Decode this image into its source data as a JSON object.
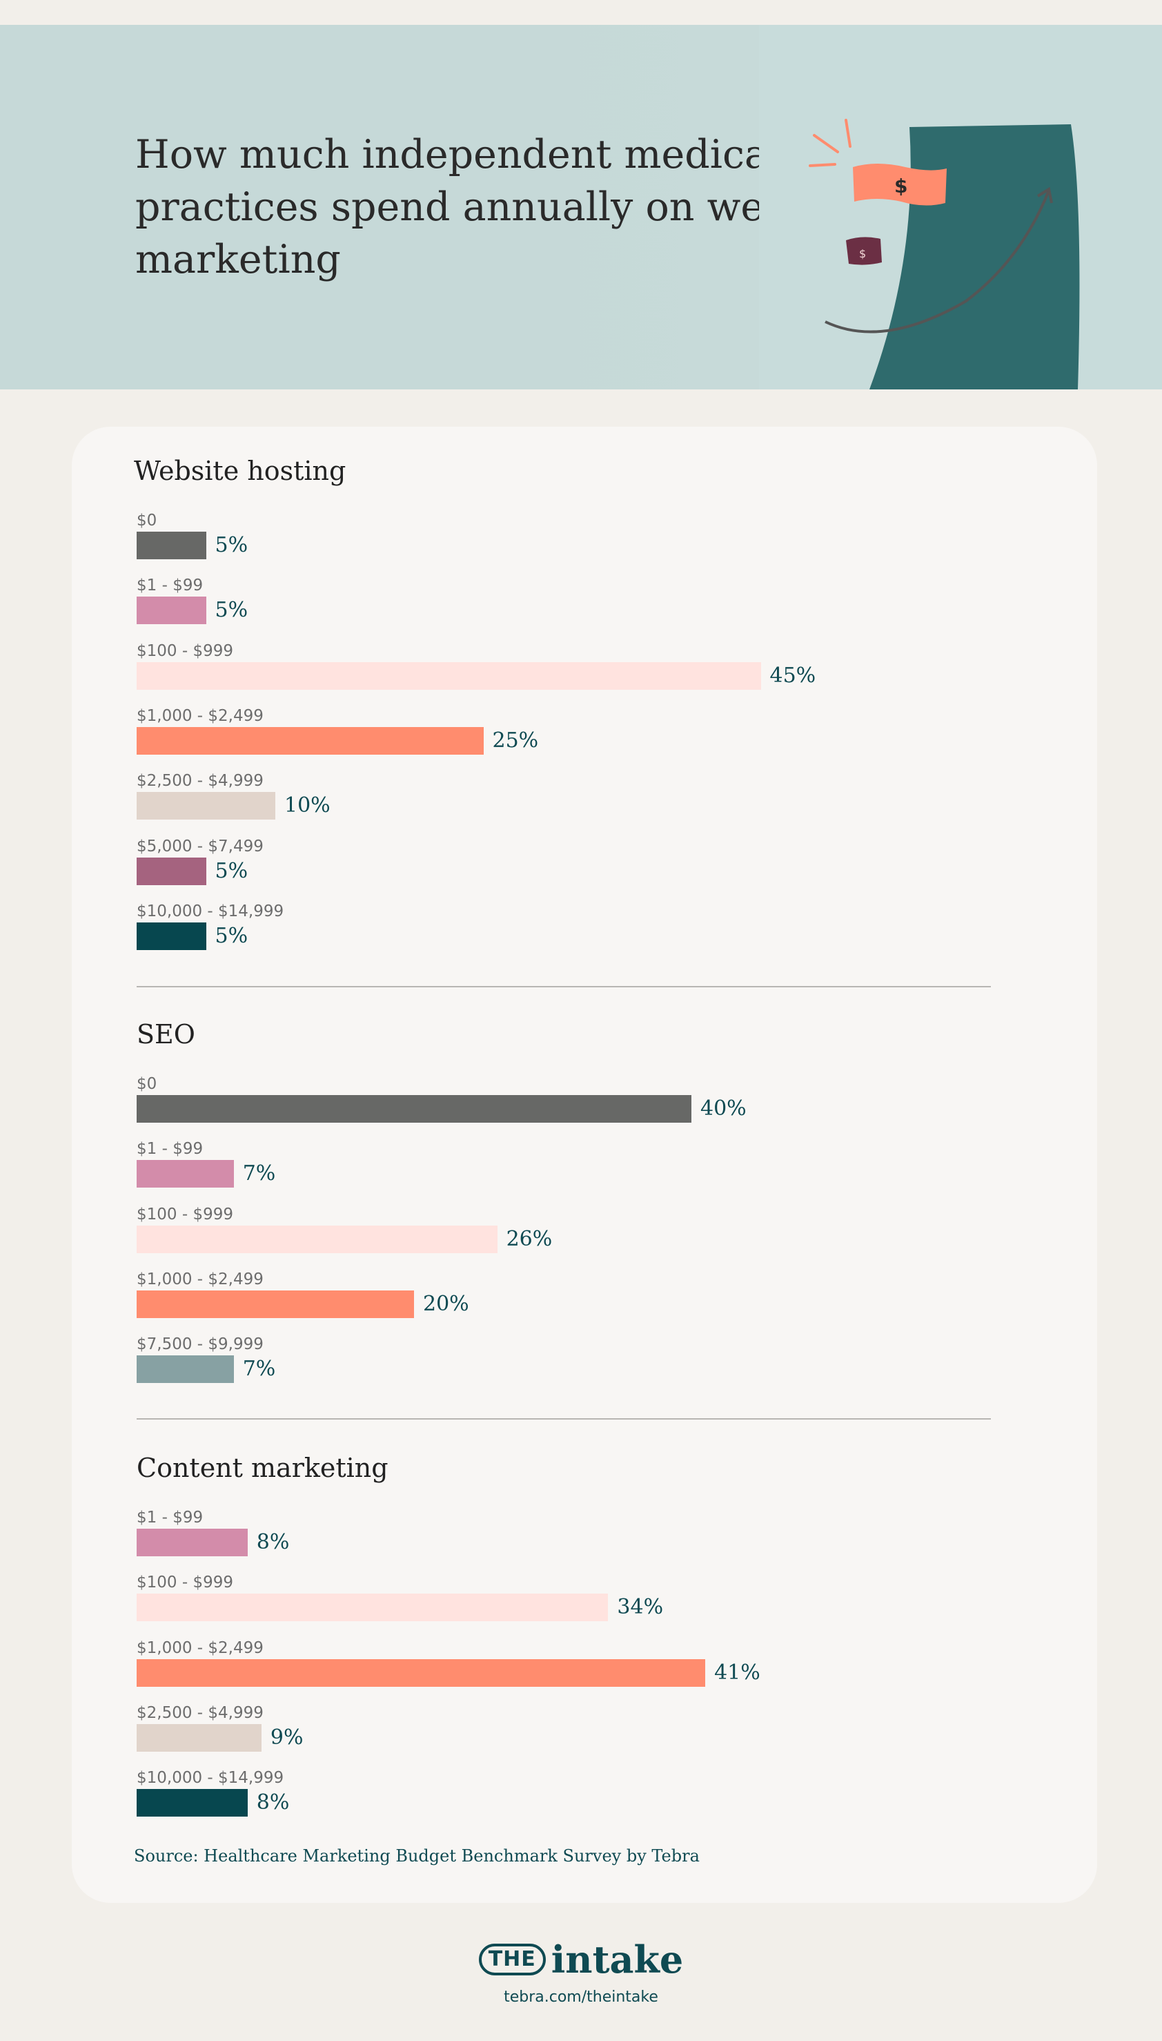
{
  "title": "How much independent medical practices spend annually on web marketing",
  "colors": {
    "$0": "#676866",
    "$1 - $99": "#d38caa",
    "$100 - $999": "#ffe3df",
    "$1,000 - $2,499": "#ff8c6e",
    "$2,500 - $4,999": "#e1d4cb",
    "$5,000 - $7,499": "#a5637f",
    "$7,500 - $9,999": "#87a1a3",
    "$10,000 - $14,999": "#07474f"
  },
  "chart_data": [
    {
      "type": "bar",
      "title": "Website hosting",
      "categories": [
        "$0",
        "$1 - $99",
        "$100 - $999",
        "$1,000 - $2,499",
        "$2,500 - $4,999",
        "$5,000 - $7,499",
        "$10,000 - $14,999"
      ],
      "values": [
        5,
        5,
        45,
        25,
        10,
        5,
        5
      ],
      "labels": [
        "5%",
        "5%",
        "45%",
        "25%",
        "10%",
        "5%",
        "5%"
      ],
      "unit": "%"
    },
    {
      "type": "bar",
      "title": "SEO",
      "categories": [
        "$0",
        "$1 - $99",
        "$100 - $999",
        "$1,000 - $2,499",
        "$7,500 - $9,999"
      ],
      "values": [
        40,
        7,
        26,
        20,
        7
      ],
      "labels": [
        "40%",
        "7%",
        "26%",
        "20%",
        "7%"
      ],
      "unit": "%"
    },
    {
      "type": "bar",
      "title": "Content marketing",
      "categories": [
        "$1 - $99",
        "$100 - $999",
        "$1,000 - $2,499",
        "$2,500 - $4,999",
        "$10,000 - $14,999"
      ],
      "values": [
        8,
        34,
        41,
        9,
        8
      ],
      "labels": [
        "8%",
        "34%",
        "41%",
        "9%",
        "8%"
      ],
      "unit": "%"
    }
  ],
  "source": "Source: Healthcare Marketing Budget Benchmark Survey by Tebra",
  "footer": {
    "logo_the": "THE",
    "logo_intake": "intake",
    "url": "tebra.com/theintake"
  },
  "art": {
    "currency_symbol": "$"
  }
}
